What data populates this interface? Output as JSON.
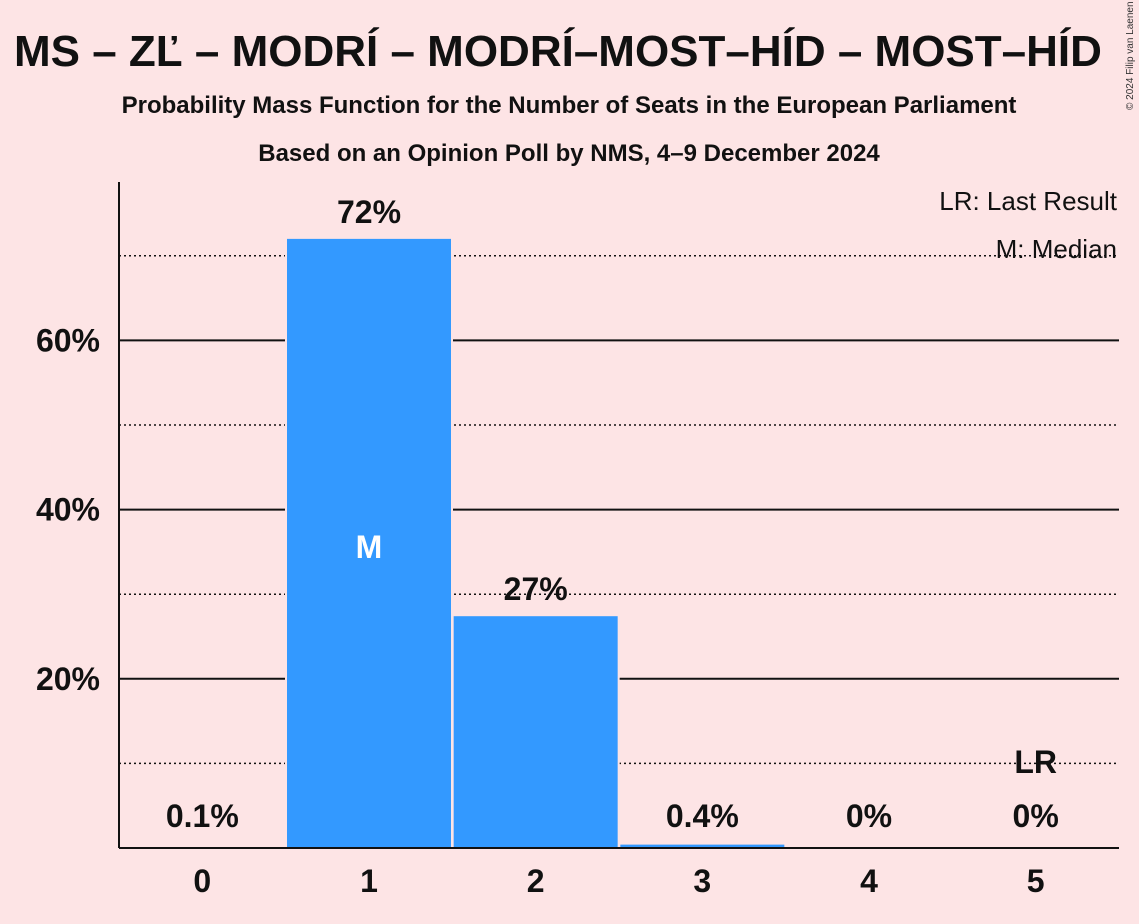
{
  "chart_data": {
    "type": "bar",
    "title": "MS – ZĽ – MODRÍ – MODRÍ–MOST–HÍD – MOST–HÍD",
    "subtitle_lines": [
      "Probability Mass Function for the Number of Seats in the European Parliament",
      "Based on an Opinion Poll by NMS, 4–9 December 2024"
    ],
    "copyright": "© 2024 Filip van Laenen",
    "categories": [
      "0",
      "1",
      "2",
      "3",
      "4",
      "5"
    ],
    "values": [
      0.1,
      72,
      27.4,
      0.4,
      0,
      0
    ],
    "value_labels": [
      "0.1%",
      "72%",
      "27%",
      "0.4%",
      "0%",
      "0%"
    ],
    "ylim": [
      0,
      78
    ],
    "yticks": [
      20,
      40,
      60
    ],
    "ytick_labels": [
      "20%",
      "40%",
      "60%"
    ],
    "dotted_gridlines": [
      10,
      30,
      50,
      70
    ],
    "bar_color": "#3399FF",
    "background_color": "#FDE4E5",
    "median_index": 1,
    "median_marker": "M",
    "last_result_index": 5,
    "last_result_marker": "LR",
    "legend": [
      "LR: Last Result",
      "M: Median"
    ],
    "legend_position": "top-right",
    "grid": true
  }
}
